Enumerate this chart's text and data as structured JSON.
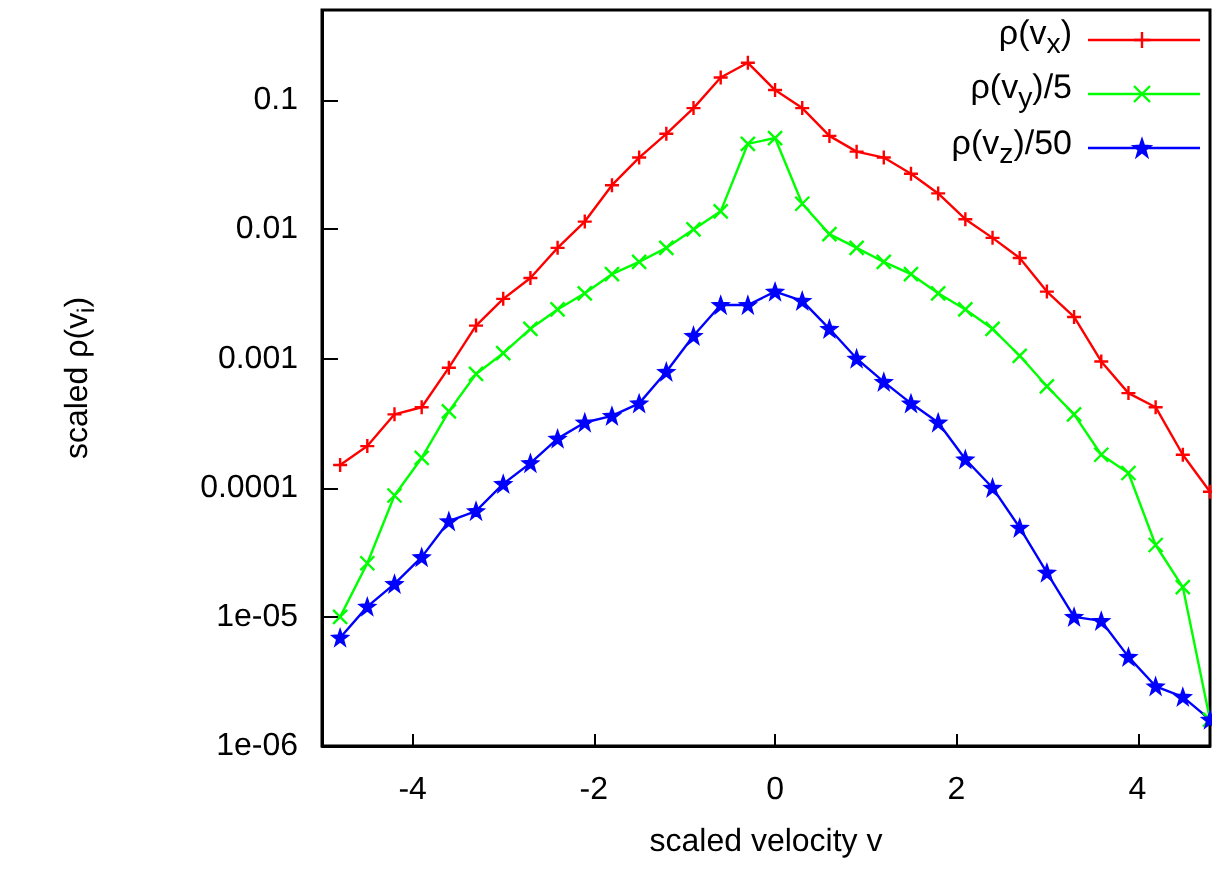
{
  "chart_data": {
    "type": "line",
    "xlabel": "scaled velocity v",
    "ylabel": "scaled ρ(v$_{i}$)",
    "xlim": [
      -5,
      4.8
    ],
    "xticks": [
      -4,
      -2,
      0,
      2,
      4
    ],
    "ylim": [
      1e-06,
      0.5
    ],
    "yticks": [
      {
        "value": 0.1,
        "label": "0.1"
      },
      {
        "value": 0.01,
        "label": "0.01"
      },
      {
        "value": 0.001,
        "label": "0.001"
      },
      {
        "value": 0.0001,
        "label": "0.0001"
      },
      {
        "value": 1e-05,
        "label": "1e-05"
      },
      {
        "value": 1e-06,
        "label": "1e-06"
      }
    ],
    "log": "y",
    "grid": false,
    "legend": "top right",
    "line_style": "solid",
    "x": [
      -4.8,
      -4.5,
      -4.2,
      -3.9,
      -3.6,
      -3.3,
      -3.0,
      -2.7,
      -2.4,
      -2.1,
      -1.8,
      -1.5,
      -1.2,
      -0.9,
      -0.6,
      -0.3,
      0.0,
      0.3,
      0.6,
      0.9,
      1.2,
      1.5,
      1.8,
      2.1,
      2.4,
      2.7,
      3.0,
      3.3,
      3.6,
      3.9,
      4.2,
      4.5,
      4.8
    ],
    "series": [
      {
        "name": "ρ(v$_{x}$)",
        "color": "#ff0000",
        "marker": "cross",
        "values": [
          0.00015,
          0.00021,
          0.00037,
          0.00042,
          0.00085,
          0.0018,
          0.0029,
          0.0042,
          0.0072,
          0.0115,
          0.022,
          0.036,
          0.055,
          0.087,
          0.15,
          0.195,
          0.12,
          0.087,
          0.053,
          0.04,
          0.036,
          0.027,
          0.019,
          0.012,
          0.0086,
          0.006,
          0.0033,
          0.0021,
          0.00095,
          0.00054,
          0.00042,
          0.00018,
          9.3e-05
        ]
      },
      {
        "name": "ρ(v$_{y}$)/5",
        "color": "#00ff00",
        "marker": "x",
        "values": [
          1e-05,
          2.6e-05,
          8.7e-05,
          0.00017,
          0.00039,
          0.00076,
          0.0011,
          0.0017,
          0.0024,
          0.0032,
          0.0045,
          0.0056,
          0.0072,
          0.01,
          0.0138,
          0.046,
          0.051,
          0.0158,
          0.0092,
          0.0072,
          0.0056,
          0.0045,
          0.0032,
          0.0024,
          0.0017,
          0.00105,
          0.00061,
          0.00037,
          0.00018,
          0.00013,
          3.6e-05,
          1.7e-05,
          1.6e-06
        ]
      },
      {
        "name": "ρ(v$_{z}$)/50",
        "color": "#0000ff",
        "marker": "star",
        "values": [
          6.9e-06,
          1.2e-05,
          1.8e-05,
          2.9e-05,
          5.5e-05,
          6.6e-05,
          0.000107,
          0.000155,
          0.00024,
          0.00032,
          0.00036,
          0.00045,
          0.00079,
          0.0015,
          0.0026,
          0.0026,
          0.0033,
          0.0028,
          0.0017,
          0.001,
          0.00066,
          0.00045,
          0.00032,
          0.000166,
          0.0001,
          4.9e-05,
          2.2e-05,
          1e-05,
          9.3e-06,
          4.9e-06,
          2.9e-06,
          2.4e-06,
          1.6e-06
        ]
      }
    ]
  }
}
